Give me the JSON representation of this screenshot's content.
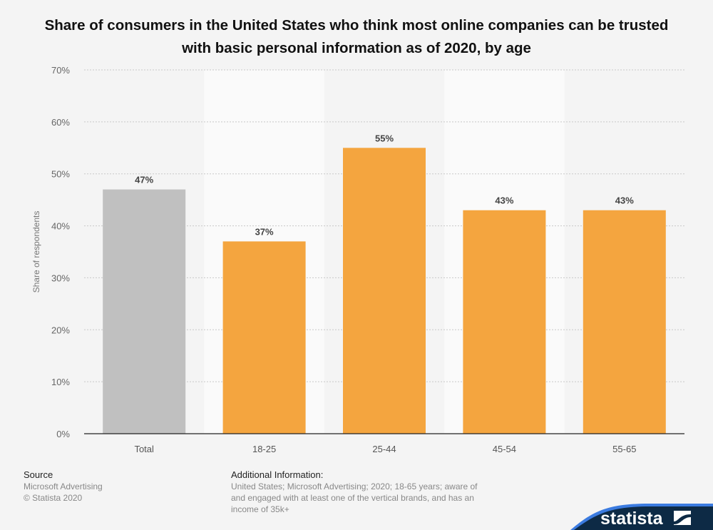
{
  "chart_data": {
    "type": "bar",
    "title": "Share of consumers in the United States who think most online companies can be trusted with basic personal information as of 2020, by age",
    "categories": [
      "Total",
      "18-25",
      "25-44",
      "45-54",
      "55-65"
    ],
    "values": [
      47,
      37,
      55,
      43,
      43
    ],
    "data_labels": [
      "47%",
      "37%",
      "55%",
      "43%",
      "43%"
    ],
    "colors": [
      "#c0c0c0",
      "#f4a53f",
      "#f4a53f",
      "#f4a53f",
      "#f4a53f"
    ],
    "xlabel": "",
    "ylabel": "Share of respondents",
    "ylim": [
      0,
      70
    ],
    "yticks": [
      0,
      10,
      20,
      30,
      40,
      50,
      60,
      70
    ],
    "ytick_labels": [
      "0%",
      "10%",
      "20%",
      "30%",
      "40%",
      "50%",
      "60%",
      "70%"
    ],
    "grid": true
  },
  "footer": {
    "source_heading": "Source",
    "source_lines": [
      "Microsoft Advertising",
      "© Statista 2020"
    ],
    "info_heading": "Additional Information:",
    "info_lines": [
      "United States; Microsoft Advertising; 2020; 18-65 years; aware of",
      "and engaged with at least one of the vertical brands, and has an",
      "income of 35k+"
    ]
  },
  "brand": {
    "logo_text": "statista",
    "navy": "#0d2a45",
    "accent": "#3b7be0"
  }
}
